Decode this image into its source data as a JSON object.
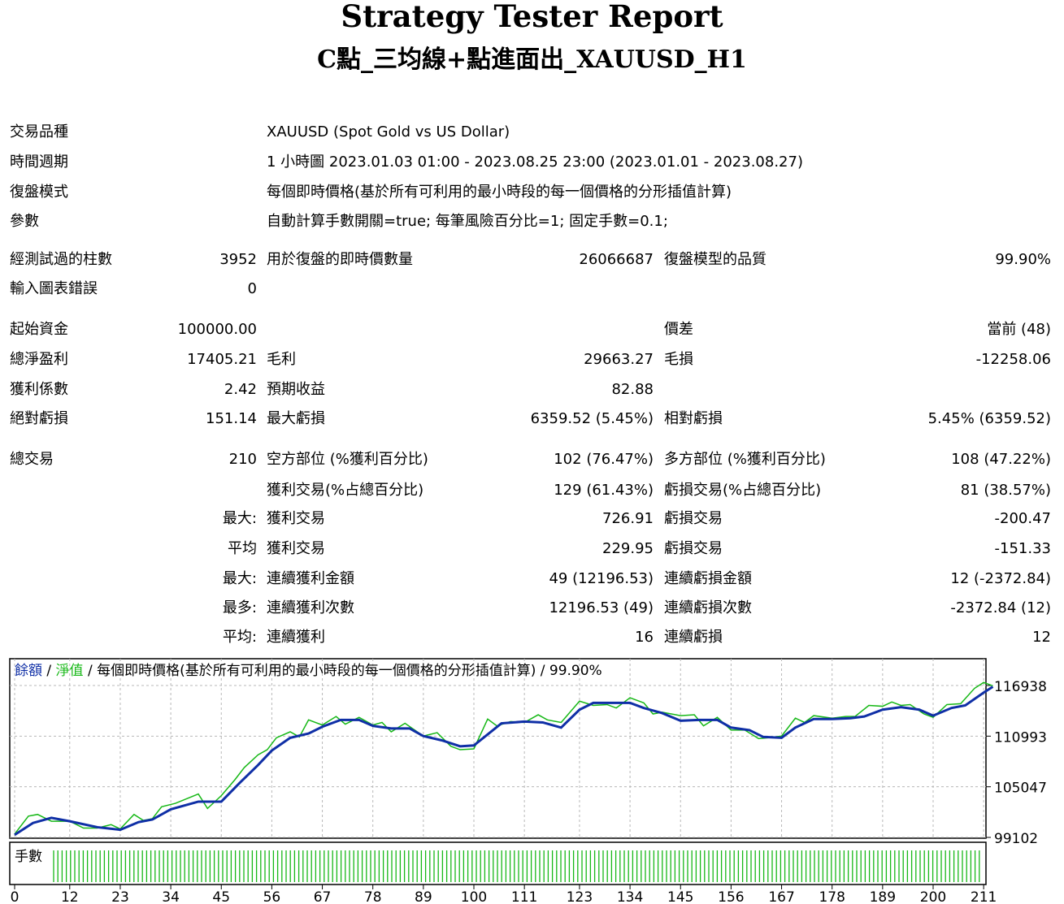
{
  "header": {
    "title": "Strategy Tester Report",
    "subtitle": "C點_三均線+點進面出_XAUUSD_H1"
  },
  "info": [
    {
      "label": "交易品種",
      "value": "XAUUSD (Spot Gold vs US Dollar)"
    },
    {
      "label": "時間週期",
      "value": "1 小時圖 2023.01.03 01:00 - 2023.08.25 23:00 (2023.01.01 - 2023.08.27)"
    },
    {
      "label": "復盤模式",
      "value": "每個即時價格(基於所有可利用的最小時段的每一個價格的分形插值計算)"
    },
    {
      "label": "參數",
      "value": "自動計算手數開關=true; 每筆風險百分比=1; 固定手數=0.1;"
    }
  ],
  "stats": [
    [
      "經測試過的柱數",
      "3952",
      "用於復盤的即時價數量",
      "26066687",
      "復盤模型的品質",
      "99.90%"
    ],
    [
      "輸入圖表錯誤",
      "0",
      "",
      "",
      "",
      ""
    ],
    [
      "起始資金",
      "100000.00",
      "",
      "",
      "價差",
      "當前 (48)"
    ],
    [
      "總淨盈利",
      "17405.21",
      "毛利",
      "29663.27",
      "毛損",
      "-12258.06"
    ],
    [
      "獲利係數",
      "2.42",
      "預期收益",
      "82.88",
      "",
      ""
    ],
    [
      "絕對虧損",
      "151.14",
      "最大虧損",
      "6359.52 (5.45%)",
      "相對虧損",
      "5.45% (6359.52)"
    ],
    [
      "總交易",
      "210",
      "空方部位 (%獲利百分比)",
      "102 (76.47%)",
      "多方部位 (%獲利百分比)",
      "108 (47.22%)"
    ],
    [
      "",
      "",
      "獲利交易(%占總百分比)",
      "129 (61.43%)",
      "虧損交易(%占總百分比)",
      "81 (38.57%)"
    ],
    [
      "",
      "最大:",
      "獲利交易",
      "726.91",
      "虧損交易",
      "-200.47"
    ],
    [
      "",
      "平均",
      "獲利交易",
      "229.95",
      "虧損交易",
      "-151.33"
    ],
    [
      "",
      "最大:",
      "連續獲利金額",
      "49 (12196.53)",
      "連續虧損金額",
      "12 (-2372.84)"
    ],
    [
      "",
      "最多:",
      "連續獲利次數",
      "12196.53 (49)",
      "連續虧損次數",
      "-2372.84 (12)"
    ],
    [
      "",
      "平均:",
      "連續獲利",
      "16",
      "連續虧損",
      "12"
    ]
  ],
  "legend": {
    "balance": "餘額",
    "equity": "淨值",
    "sep": " / ",
    "rest": " / 每個即時價格(基於所有可利用的最小時段的每一個價格的分形插值計算) / 99.90%"
  },
  "lots_label": "手數",
  "colors": {
    "balance": "#0f2fa6",
    "equity": "#17b817",
    "grid": "#b8b8b8"
  },
  "chart_data": {
    "type": "line",
    "y_ticks": [
      116938,
      110993,
      105047,
      99102
    ],
    "x_ticks": [
      0,
      12,
      23,
      34,
      45,
      56,
      67,
      78,
      89,
      100,
      111,
      123,
      134,
      145,
      156,
      167,
      178,
      189,
      200,
      211
    ],
    "xlim": [
      0,
      214
    ],
    "ylim": [
      99102,
      118000
    ],
    "series": [
      {
        "name": "餘額",
        "x": [
          0,
          4,
          8,
          12,
          18,
          23,
          27,
          30,
          34,
          40,
          45,
          49,
          53,
          56,
          60,
          64,
          67,
          71,
          75,
          78,
          82,
          86,
          89,
          93,
          97,
          100,
          103,
          106,
          111,
          115,
          119,
          123,
          126,
          130,
          134,
          137,
          141,
          145,
          149,
          153,
          156,
          160,
          163,
          167,
          170,
          174,
          178,
          182,
          185,
          189,
          193,
          197,
          200,
          204,
          207,
          211,
          213
        ],
        "y": [
          99400,
          100800,
          101400,
          101000,
          100300,
          100000,
          100900,
          101200,
          102400,
          103300,
          103300,
          105500,
          107600,
          109300,
          110800,
          111300,
          112100,
          112900,
          112900,
          112200,
          111900,
          111900,
          111000,
          110500,
          109800,
          109900,
          111200,
          112500,
          112700,
          112600,
          112000,
          114100,
          114900,
          114900,
          114900,
          114300,
          113700,
          112800,
          112900,
          112900,
          112000,
          111700,
          110900,
          110800,
          112000,
          113000,
          113000,
          113100,
          113300,
          114100,
          114400,
          114100,
          113400,
          114300,
          114600,
          116100,
          116800
        ]
      },
      {
        "name": "淨值",
        "x": [
          0,
          3,
          5,
          8,
          12,
          15,
          18,
          21,
          23,
          26,
          28,
          30,
          32,
          35,
          40,
          42,
          45,
          48,
          50,
          53,
          55,
          57,
          60,
          62,
          64,
          67,
          70,
          72,
          75,
          78,
          80,
          82,
          85,
          89,
          92,
          95,
          97,
          100,
          103,
          105,
          108,
          111,
          114,
          116,
          119,
          123,
          126,
          129,
          131,
          134,
          137,
          139,
          141,
          145,
          148,
          150,
          153,
          156,
          159,
          162,
          164,
          167,
          170,
          172,
          174,
          178,
          181,
          183,
          186,
          189,
          191,
          193,
          195,
          198,
          200,
          203,
          206,
          209,
          211,
          213
        ],
        "y": [
          99500,
          101600,
          101800,
          101000,
          101000,
          100200,
          100200,
          100600,
          100100,
          101800,
          101100,
          101300,
          102700,
          103100,
          104200,
          102500,
          104000,
          105900,
          107300,
          108800,
          109400,
          110800,
          111500,
          110900,
          112900,
          112300,
          113300,
          112400,
          113200,
          112300,
          112600,
          111500,
          112500,
          111000,
          111400,
          109800,
          109400,
          109500,
          113000,
          112200,
          112700,
          112600,
          113500,
          112900,
          112600,
          115100,
          114600,
          114700,
          114300,
          115500,
          114900,
          113600,
          113800,
          113400,
          113500,
          112200,
          113200,
          111700,
          111700,
          110700,
          110800,
          111000,
          113100,
          112600,
          113400,
          113100,
          113300,
          113300,
          114600,
          114500,
          115000,
          114600,
          114700,
          113600,
          113200,
          114700,
          114800,
          116600,
          117300,
          116900
        ]
      }
    ]
  }
}
